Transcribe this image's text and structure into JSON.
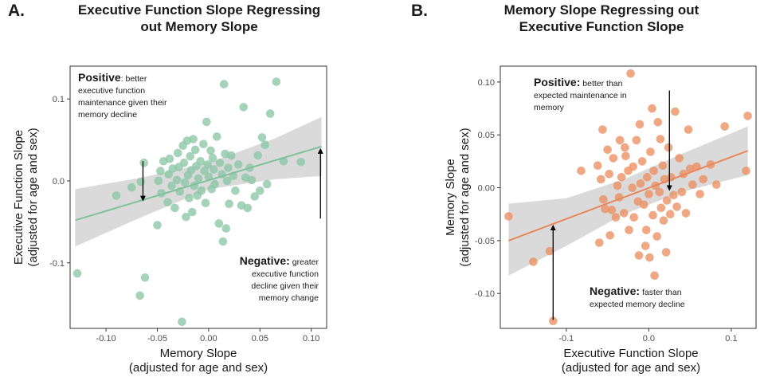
{
  "colors": {
    "panel_a_points": "#8cc7a6",
    "panel_a_line": "#7fc29b",
    "panel_b_points": "#ec8e61",
    "panel_b_line": "#e8875b",
    "confidence_band": "#d3d3d3",
    "arrow": "#000000"
  },
  "panels": [
    {
      "letter": "A.",
      "title_lines": [
        "Executive Function Slope Regressing",
        "out Memory Slope"
      ],
      "annotations": {
        "positive_label": "Positive",
        "positive_text": [
          ": better",
          "executive function",
          "maintenance given their",
          "memory decline"
        ],
        "negative_label": "Negative:",
        "negative_text": [
          " greater",
          "executive function",
          "decline given their",
          "memory change"
        ]
      }
    },
    {
      "letter": "B.",
      "title_lines": [
        "Memory Slope Regressing out",
        "Executive Function Slope"
      ],
      "annotations": {
        "positive_label": "Positive:",
        "positive_text": [
          " better than",
          "expected maintenance in",
          "memory"
        ],
        "negative_label": "Negative:",
        "negative_text": [
          " faster than",
          "expected memory decline"
        ]
      }
    }
  ],
  "chart_data": [
    {
      "type": "scatter",
      "title": "Executive Function Slope Regressing out Memory Slope",
      "xlabel": [
        "Memory Slope",
        "(adjusted for age and sex)"
      ],
      "ylabel": [
        "Executive Function Slope",
        "(adjusted for age and sex)"
      ],
      "xlim": [
        -0.135,
        0.115
      ],
      "ylim": [
        -0.18,
        0.14
      ],
      "xticks": [
        -0.1,
        -0.05,
        0.0,
        0.05,
        0.1
      ],
      "xtick_labels": [
        "-0.10",
        "-0.05",
        "0.00",
        "0.05",
        "0.10"
      ],
      "yticks": [
        -0.1,
        0.0,
        0.1
      ],
      "ytick_labels": [
        "-0.1",
        "0.0",
        "0.1"
      ],
      "grid": false,
      "regression": {
        "x": [
          -0.13,
          0.11
        ],
        "y": [
          -0.048,
          0.042
        ]
      },
      "confidence_band": {
        "x": [
          -0.13,
          -0.065,
          0.0,
          0.065,
          0.11
        ],
        "upper": [
          -0.01,
          0.004,
          0.022,
          0.052,
          0.078
        ],
        "lower": [
          -0.08,
          -0.044,
          -0.01,
          0.002,
          0.006
        ]
      },
      "arrows": [
        {
          "x": -0.064,
          "y_from": 0.024,
          "y_to": -0.025
        },
        {
          "x": 0.109,
          "y_from": -0.046,
          "y_to": 0.04
        }
      ],
      "points": [
        {
          "x": -0.128,
          "y": -0.113
        },
        {
          "x": -0.09,
          "y": -0.018
        },
        {
          "x": -0.075,
          "y": -0.008
        },
        {
          "x": -0.067,
          "y": -0.14
        },
        {
          "x": -0.066,
          "y": -0.001
        },
        {
          "x": -0.063,
          "y": 0.022
        },
        {
          "x": -0.062,
          "y": -0.118
        },
        {
          "x": -0.05,
          "y": -0.054
        },
        {
          "x": -0.049,
          "y": 0.0
        },
        {
          "x": -0.047,
          "y": 0.012
        },
        {
          "x": -0.046,
          "y": -0.015
        },
        {
          "x": -0.044,
          "y": 0.024
        },
        {
          "x": -0.04,
          "y": -0.026
        },
        {
          "x": -0.039,
          "y": 0.008
        },
        {
          "x": -0.038,
          "y": 0.027
        },
        {
          "x": -0.036,
          "y": -0.006
        },
        {
          "x": -0.035,
          "y": 0.015
        },
        {
          "x": -0.033,
          "y": -0.033
        },
        {
          "x": -0.031,
          "y": 0.001
        },
        {
          "x": -0.03,
          "y": 0.034
        },
        {
          "x": -0.029,
          "y": 0.017
        },
        {
          "x": -0.028,
          "y": -0.013
        },
        {
          "x": -0.026,
          "y": -0.172
        },
        {
          "x": -0.025,
          "y": 0.043
        },
        {
          "x": -0.024,
          "y": 0.022
        },
        {
          "x": -0.023,
          "y": -0.002
        },
        {
          "x": -0.022,
          "y": -0.044
        },
        {
          "x": -0.021,
          "y": 0.049
        },
        {
          "x": -0.02,
          "y": 0.007
        },
        {
          "x": -0.019,
          "y": -0.021
        },
        {
          "x": -0.018,
          "y": 0.03
        },
        {
          "x": -0.017,
          "y": 0.013
        },
        {
          "x": -0.016,
          "y": -0.038
        },
        {
          "x": -0.015,
          "y": 0.051
        },
        {
          "x": -0.014,
          "y": -0.006
        },
        {
          "x": -0.013,
          "y": 0.038
        },
        {
          "x": -0.012,
          "y": 0.018
        },
        {
          "x": -0.011,
          "y": -0.018
        },
        {
          "x": -0.01,
          "y": 0.003
        },
        {
          "x": -0.008,
          "y": 0.024
        },
        {
          "x": -0.007,
          "y": -0.012
        },
        {
          "x": -0.005,
          "y": 0.045
        },
        {
          "x": -0.004,
          "y": 0.012
        },
        {
          "x": -0.003,
          "y": -0.027
        },
        {
          "x": -0.002,
          "y": 0.072
        },
        {
          "x": -0.001,
          "y": 0.02
        },
        {
          "x": 0.0,
          "y": 0.005
        },
        {
          "x": 0.002,
          "y": 0.037
        },
        {
          "x": 0.003,
          "y": -0.01
        },
        {
          "x": 0.004,
          "y": 0.028
        },
        {
          "x": 0.005,
          "y": 0.014
        },
        {
          "x": 0.006,
          "y": -0.004
        },
        {
          "x": 0.008,
          "y": 0.054
        },
        {
          "x": 0.01,
          "y": -0.052
        },
        {
          "x": 0.011,
          "y": 0.022
        },
        {
          "x": 0.013,
          "y": 0.008
        },
        {
          "x": 0.014,
          "y": -0.074
        },
        {
          "x": 0.015,
          "y": 0.118
        },
        {
          "x": 0.016,
          "y": 0.033
        },
        {
          "x": 0.017,
          "y": -0.058
        },
        {
          "x": 0.018,
          "y": 0.0
        },
        {
          "x": 0.019,
          "y": 0.016
        },
        {
          "x": 0.02,
          "y": -0.028
        },
        {
          "x": 0.022,
          "y": 0.031
        },
        {
          "x": 0.024,
          "y": 0.006
        },
        {
          "x": 0.026,
          "y": -0.012
        },
        {
          "x": 0.029,
          "y": 0.02
        },
        {
          "x": 0.032,
          "y": -0.03
        },
        {
          "x": 0.034,
          "y": 0.09
        },
        {
          "x": 0.036,
          "y": 0.004
        },
        {
          "x": 0.038,
          "y": -0.033
        },
        {
          "x": 0.04,
          "y": 0.016
        },
        {
          "x": 0.042,
          "y": 0.001
        },
        {
          "x": 0.045,
          "y": -0.019
        },
        {
          "x": 0.048,
          "y": 0.031
        },
        {
          "x": 0.05,
          "y": -0.012
        },
        {
          "x": 0.052,
          "y": 0.053
        },
        {
          "x": 0.055,
          "y": 0.044
        },
        {
          "x": 0.057,
          "y": -0.004
        },
        {
          "x": 0.06,
          "y": 0.082
        },
        {
          "x": 0.066,
          "y": 0.121
        },
        {
          "x": 0.073,
          "y": 0.024
        },
        {
          "x": 0.09,
          "y": 0.023
        }
      ]
    },
    {
      "type": "scatter",
      "title": "Memory Slope Regressing out Executive Function Slope",
      "xlabel": [
        "Executive Function Slope",
        "(adjusted for age and sex)"
      ],
      "ylabel": [
        "Memory Slope",
        "(adjusted for age and sex)"
      ],
      "xlim": [
        -0.18,
        0.13
      ],
      "ylim": [
        -0.133,
        0.115
      ],
      "xticks": [
        -0.1,
        0.0,
        0.1
      ],
      "xtick_labels": [
        "-0.1",
        "0.0",
        "0.1"
      ],
      "yticks": [
        -0.1,
        -0.05,
        0.0,
        0.05,
        0.1
      ],
      "ytick_labels": [
        "-0.10",
        "-0.05",
        "0.00",
        "0.05",
        "0.10"
      ],
      "grid": false,
      "regression": {
        "x": [
          -0.17,
          0.12
        ],
        "y": [
          -0.05,
          0.035
        ]
      },
      "confidence_band": {
        "x": [
          -0.17,
          -0.1,
          -0.03,
          0.04,
          0.12
        ],
        "upper": [
          -0.015,
          -0.01,
          0.008,
          0.032,
          0.058
        ],
        "lower": [
          -0.083,
          -0.055,
          -0.025,
          -0.004,
          0.012
        ]
      },
      "arrows": [
        {
          "x": -0.116,
          "y_from": -0.125,
          "y_to": -0.035
        },
        {
          "x": 0.025,
          "y_from": 0.092,
          "y_to": -0.003
        }
      ],
      "points": [
        {
          "x": -0.17,
          "y": -0.027
        },
        {
          "x": -0.14,
          "y": -0.07
        },
        {
          "x": -0.12,
          "y": -0.06
        },
        {
          "x": -0.116,
          "y": -0.126
        },
        {
          "x": -0.082,
          "y": 0.016
        },
        {
          "x": -0.062,
          "y": 0.021
        },
        {
          "x": -0.06,
          "y": -0.052
        },
        {
          "x": -0.058,
          "y": 0.008
        },
        {
          "x": -0.056,
          "y": 0.055
        },
        {
          "x": -0.055,
          "y": -0.011
        },
        {
          "x": -0.053,
          "y": -0.02
        },
        {
          "x": -0.05,
          "y": 0.036
        },
        {
          "x": -0.048,
          "y": 0.013
        },
        {
          "x": -0.047,
          "y": -0.045
        },
        {
          "x": -0.045,
          "y": -0.021
        },
        {
          "x": -0.043,
          "y": 0.028
        },
        {
          "x": -0.04,
          "y": -0.028
        },
        {
          "x": -0.038,
          "y": 0.002
        },
        {
          "x": -0.036,
          "y": -0.009
        },
        {
          "x": -0.035,
          "y": 0.045
        },
        {
          "x": -0.033,
          "y": 0.01
        },
        {
          "x": -0.03,
          "y": -0.024
        },
        {
          "x": -0.029,
          "y": 0.038
        },
        {
          "x": -0.028,
          "y": 0.03
        },
        {
          "x": -0.025,
          "y": 0.016
        },
        {
          "x": -0.024,
          "y": -0.04
        },
        {
          "x": -0.022,
          "y": 0.108
        },
        {
          "x": -0.02,
          "y": 0.0
        },
        {
          "x": -0.019,
          "y": 0.02
        },
        {
          "x": -0.018,
          "y": -0.028
        },
        {
          "x": -0.015,
          "y": 0.045
        },
        {
          "x": -0.013,
          "y": -0.013
        },
        {
          "x": -0.012,
          "y": -0.064
        },
        {
          "x": -0.011,
          "y": 0.06
        },
        {
          "x": -0.01,
          "y": 0.004
        },
        {
          "x": -0.008,
          "y": 0.025
        },
        {
          "x": -0.006,
          "y": -0.016
        },
        {
          "x": -0.004,
          "y": -0.055
        },
        {
          "x": -0.003,
          "y": -0.04
        },
        {
          "x": -0.002,
          "y": 0.01
        },
        {
          "x": 0.0,
          "y": -0.006
        },
        {
          "x": 0.001,
          "y": -0.066
        },
        {
          "x": 0.002,
          "y": 0.034
        },
        {
          "x": 0.004,
          "y": 0.075
        },
        {
          "x": 0.005,
          "y": -0.026
        },
        {
          "x": 0.006,
          "y": 0.016
        },
        {
          "x": 0.007,
          "y": -0.083
        },
        {
          "x": 0.008,
          "y": 0.002
        },
        {
          "x": 0.01,
          "y": -0.046
        },
        {
          "x": 0.011,
          "y": 0.062
        },
        {
          "x": 0.013,
          "y": -0.004
        },
        {
          "x": 0.014,
          "y": 0.046
        },
        {
          "x": 0.015,
          "y": -0.019
        },
        {
          "x": 0.017,
          "y": 0.021
        },
        {
          "x": 0.018,
          "y": -0.031
        },
        {
          "x": 0.019,
          "y": 0.008
        },
        {
          "x": 0.021,
          "y": -0.061
        },
        {
          "x": 0.022,
          "y": -0.012
        },
        {
          "x": 0.024,
          "y": 0.038
        },
        {
          "x": 0.026,
          "y": -0.025
        },
        {
          "x": 0.027,
          "y": 0.01
        },
        {
          "x": 0.03,
          "y": -0.007
        },
        {
          "x": 0.032,
          "y": 0.072
        },
        {
          "x": 0.034,
          "y": -0.018
        },
        {
          "x": 0.037,
          "y": 0.028
        },
        {
          "x": 0.04,
          "y": -0.004
        },
        {
          "x": 0.042,
          "y": 0.013
        },
        {
          "x": 0.045,
          "y": -0.024
        },
        {
          "x": 0.048,
          "y": 0.055
        },
        {
          "x": 0.05,
          "y": 0.018
        },
        {
          "x": 0.053,
          "y": 0.003
        },
        {
          "x": 0.058,
          "y": 0.02
        },
        {
          "x": 0.062,
          "y": -0.006
        },
        {
          "x": 0.066,
          "y": 0.008
        },
        {
          "x": 0.075,
          "y": 0.022
        },
        {
          "x": 0.082,
          "y": 0.003
        },
        {
          "x": 0.092,
          "y": 0.058
        },
        {
          "x": 0.118,
          "y": 0.016
        },
        {
          "x": 0.12,
          "y": 0.068
        }
      ]
    }
  ]
}
